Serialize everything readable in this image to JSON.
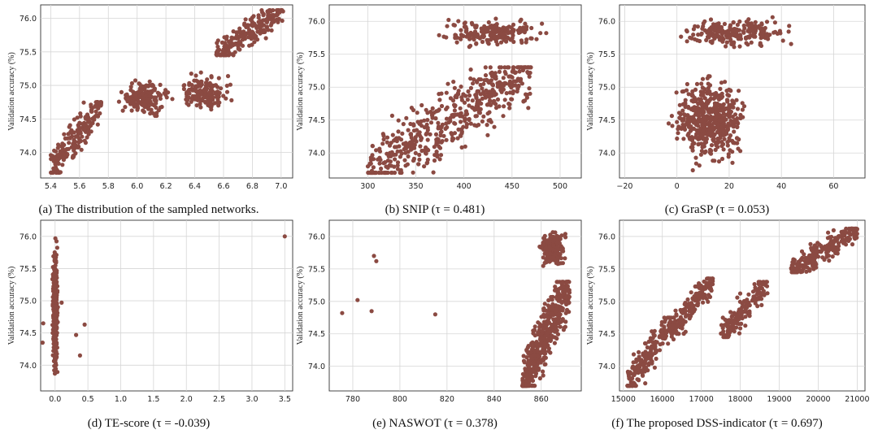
{
  "chart_data": [
    {
      "id": "a",
      "type": "scatter",
      "caption": "(a) The distribution of the sampled networks.",
      "xlabel": "",
      "ylabel": "Validation accuracy (%)",
      "xlim": [
        5.33,
        7.08
      ],
      "ylim": [
        73.62,
        76.2
      ],
      "xticks": [
        "5.4",
        "5.6",
        "5.8",
        "6.0",
        "6.2",
        "6.4",
        "6.6",
        "6.8",
        "7.0"
      ],
      "yticks": [
        "74.0",
        "74.5",
        "75.0",
        "75.5",
        "76.0"
      ],
      "color": "#8b4a42",
      "grid": true,
      "clusters": [
        {
          "x": [
            5.4,
            5.75
          ],
          "y": [
            73.7,
            74.75
          ],
          "n": 200,
          "trend": true
        },
        {
          "x": [
            5.85,
            6.25
          ],
          "y": [
            74.45,
            75.2
          ],
          "n": 170,
          "trend": false
        },
        {
          "x": [
            6.25,
            6.7
          ],
          "y": [
            74.55,
            75.25
          ],
          "n": 150,
          "trend": false
        },
        {
          "x": [
            6.55,
            7.02
          ],
          "y": [
            75.45,
            76.12
          ],
          "n": 210,
          "trend": true
        }
      ]
    },
    {
      "id": "b",
      "type": "scatter",
      "caption": "(b) SNIP (τ = 0.481)",
      "xlabel": "",
      "ylabel": "Validation accuracy (%)",
      "xlim": [
        260,
        522
      ],
      "ylim": [
        73.62,
        76.25
      ],
      "xticks": [
        "300",
        "350",
        "400",
        "450",
        "500"
      ],
      "yticks": [
        "74.0",
        "74.5",
        "75.0",
        "75.5",
        "76.0"
      ],
      "color": "#8b4a42",
      "grid": true,
      "clusters": [
        {
          "x": [
            300,
            470
          ],
          "y": [
            73.7,
            75.3
          ],
          "n": 520,
          "trend": true
        },
        {
          "x": [
            370,
            500
          ],
          "y": [
            75.55,
            76.1
          ],
          "n": 200,
          "trend": false
        }
      ]
    },
    {
      "id": "c",
      "type": "scatter",
      "caption": "(c) GraSP (τ = 0.053)",
      "xlabel": "",
      "ylabel": "Validation accuracy (%)",
      "xlim": [
        -22,
        72
      ],
      "ylim": [
        73.62,
        76.25
      ],
      "xticks": [
        "−20",
        "0",
        "20",
        "40",
        "60"
      ],
      "yticks": [
        "74.0",
        "74.5",
        "75.0",
        "75.5",
        "76.0"
      ],
      "color": "#8b4a42",
      "grid": true,
      "clusters": [
        {
          "x": [
            -5,
            30
          ],
          "y": [
            73.7,
            75.3
          ],
          "n": 520,
          "trend": false
        },
        {
          "x": [
            -5,
            50
          ],
          "y": [
            75.55,
            76.1
          ],
          "n": 200,
          "trend": false
        }
      ]
    },
    {
      "id": "d",
      "type": "scatter",
      "caption": "(d) TE-score (τ = -0.039)",
      "xlabel": "",
      "ylabel": "Validation accuracy (%)",
      "xlim": [
        -0.22,
        3.62
      ],
      "ylim": [
        73.6,
        76.25
      ],
      "xticks": [
        "0.0",
        "0.5",
        "1.0",
        "1.5",
        "2.0",
        "2.5",
        "3.0",
        "3.5"
      ],
      "yticks": [
        "74.0",
        "74.5",
        "75.0",
        "75.5",
        "76.0"
      ],
      "color": "#8b4a42",
      "grid": true,
      "clusters": [
        {
          "x": [
            -0.05,
            0.05
          ],
          "y": [
            73.7,
            76.12
          ],
          "n": 340,
          "trend": false
        }
      ],
      "outliers": [
        [
          3.5,
          76.0
        ],
        [
          0.45,
          74.63
        ],
        [
          0.38,
          74.15
        ],
        [
          0.32,
          74.47
        ],
        [
          -0.18,
          74.65
        ],
        [
          -0.19,
          74.35
        ],
        [
          0.1,
          74.97
        ]
      ]
    },
    {
      "id": "e",
      "type": "scatter",
      "caption": "(e) NASWOT (τ = 0.378)",
      "xlabel": "",
      "ylabel": "Validation accuracy (%)",
      "xlim": [
        770,
        877
      ],
      "ylim": [
        73.62,
        76.25
      ],
      "xticks": [
        "780",
        "800",
        "820",
        "840",
        "860"
      ],
      "yticks": [
        "74.0",
        "74.5",
        "75.0",
        "75.5",
        "76.0"
      ],
      "color": "#8b4a42",
      "grid": true,
      "clusters": [
        {
          "x": [
            852,
            872
          ],
          "y": [
            73.7,
            75.3
          ],
          "n": 480,
          "trend": true
        },
        {
          "x": [
            858,
            871
          ],
          "y": [
            75.45,
            76.12
          ],
          "n": 200,
          "trend": false
        }
      ],
      "outliers": [
        [
          775.5,
          74.82
        ],
        [
          782,
          75.02
        ],
        [
          788,
          74.85
        ],
        [
          789,
          75.7
        ],
        [
          790,
          75.62
        ],
        [
          815,
          74.8
        ]
      ]
    },
    {
      "id": "f",
      "type": "scatter",
      "caption": "(f) The proposed DSS-indicator (τ = 0.697)",
      "xlabel": "",
      "ylabel": "Validation accuracy (%)",
      "xlim": [
        14900,
        21200
      ],
      "ylim": [
        73.62,
        76.25
      ],
      "xticks": [
        "15000",
        "16000",
        "17000",
        "18000",
        "19000",
        "20000",
        "21000"
      ],
      "yticks": [
        "74.0",
        "74.5",
        "75.0",
        "75.5",
        "76.0"
      ],
      "color": "#8b4a42",
      "grid": true,
      "clusters": [
        {
          "x": [
            15100,
            16300
          ],
          "y": [
            73.7,
            74.75
          ],
          "n": 200,
          "trend": true
        },
        {
          "x": [
            16200,
            17300
          ],
          "y": [
            74.5,
            75.35
          ],
          "n": 170,
          "trend": true
        },
        {
          "x": [
            17500,
            18700
          ],
          "y": [
            74.45,
            75.3
          ],
          "n": 160,
          "trend": true
        },
        {
          "x": [
            19300,
            21000
          ],
          "y": [
            75.45,
            76.12
          ],
          "n": 220,
          "trend": true
        }
      ]
    }
  ]
}
